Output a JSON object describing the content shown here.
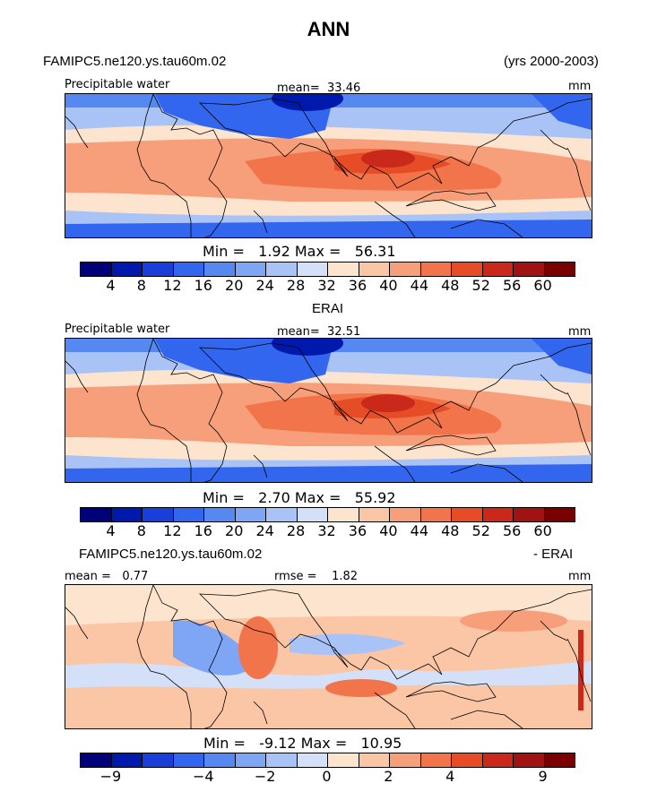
{
  "page": {
    "title": "ANN",
    "case_name": "FAMIPC5.ne120.ys.tau60m.02",
    "years": "(yrs 2000-2003)",
    "obs_name": "ERAI",
    "diff_case": "FAMIPC5.ne120.ys.tau60m.02",
    "diff_suffix": "- ERAI"
  },
  "chart_data": [
    {
      "type": "heatmap",
      "title": "Precipitable water",
      "units": "mm",
      "mean_label": "mean=",
      "mean": "33.46",
      "min_label": "Min =",
      "min": "1.92",
      "max_label": "Max =",
      "max": "56.31",
      "colorbar_ticks": [
        "4",
        "8",
        "12",
        "16",
        "20",
        "24",
        "28",
        "32",
        "36",
        "40",
        "44",
        "48",
        "52",
        "56",
        "60"
      ],
      "colors": [
        "#00007a",
        "#0019ad",
        "#1a3fd9",
        "#3366ee",
        "#5588f0",
        "#7fa6f5",
        "#aac3f7",
        "#d3e0f8",
        "#fde4cf",
        "#fbc6a6",
        "#f79f7a",
        "#f2744b",
        "#e64d26",
        "#c9281a",
        "#a11212",
        "#7a0000"
      ]
    },
    {
      "type": "heatmap",
      "title": "Precipitable water",
      "units": "mm",
      "mean_label": "mean=",
      "mean": "32.51",
      "min_label": "Min =",
      "min": "2.70",
      "max_label": "Max =",
      "max": "55.92",
      "colorbar_ticks": [
        "4",
        "8",
        "12",
        "16",
        "20",
        "24",
        "28",
        "32",
        "36",
        "40",
        "44",
        "48",
        "52",
        "56",
        "60"
      ],
      "colors": [
        "#00007a",
        "#0019ad",
        "#1a3fd9",
        "#3366ee",
        "#5588f0",
        "#7fa6f5",
        "#aac3f7",
        "#d3e0f8",
        "#fde4cf",
        "#fbc6a6",
        "#f79f7a",
        "#f2744b",
        "#e64d26",
        "#c9281a",
        "#a11212",
        "#7a0000"
      ]
    },
    {
      "type": "heatmap",
      "title": "",
      "units": "mm",
      "mean_label": "mean =",
      "mean": "0.77",
      "rmse_label": "rmse =",
      "rmse": "1.82",
      "min_label": "Min =",
      "min": "-9.12",
      "max_label": "Max =",
      "max": "10.95",
      "colorbar_ticks": [
        "−9",
        "−4",
        "−2",
        "0",
        "2",
        "4",
        "9"
      ],
      "colors": [
        "#00007a",
        "#0019ad",
        "#1a3fd9",
        "#3366ee",
        "#5588f0",
        "#7fa6f5",
        "#aac3f7",
        "#d3e0f8",
        "#fde4cf",
        "#fbc6a6",
        "#f79f7a",
        "#f2744b",
        "#e64d26",
        "#c9281a",
        "#a11212",
        "#7a0000"
      ]
    }
  ]
}
